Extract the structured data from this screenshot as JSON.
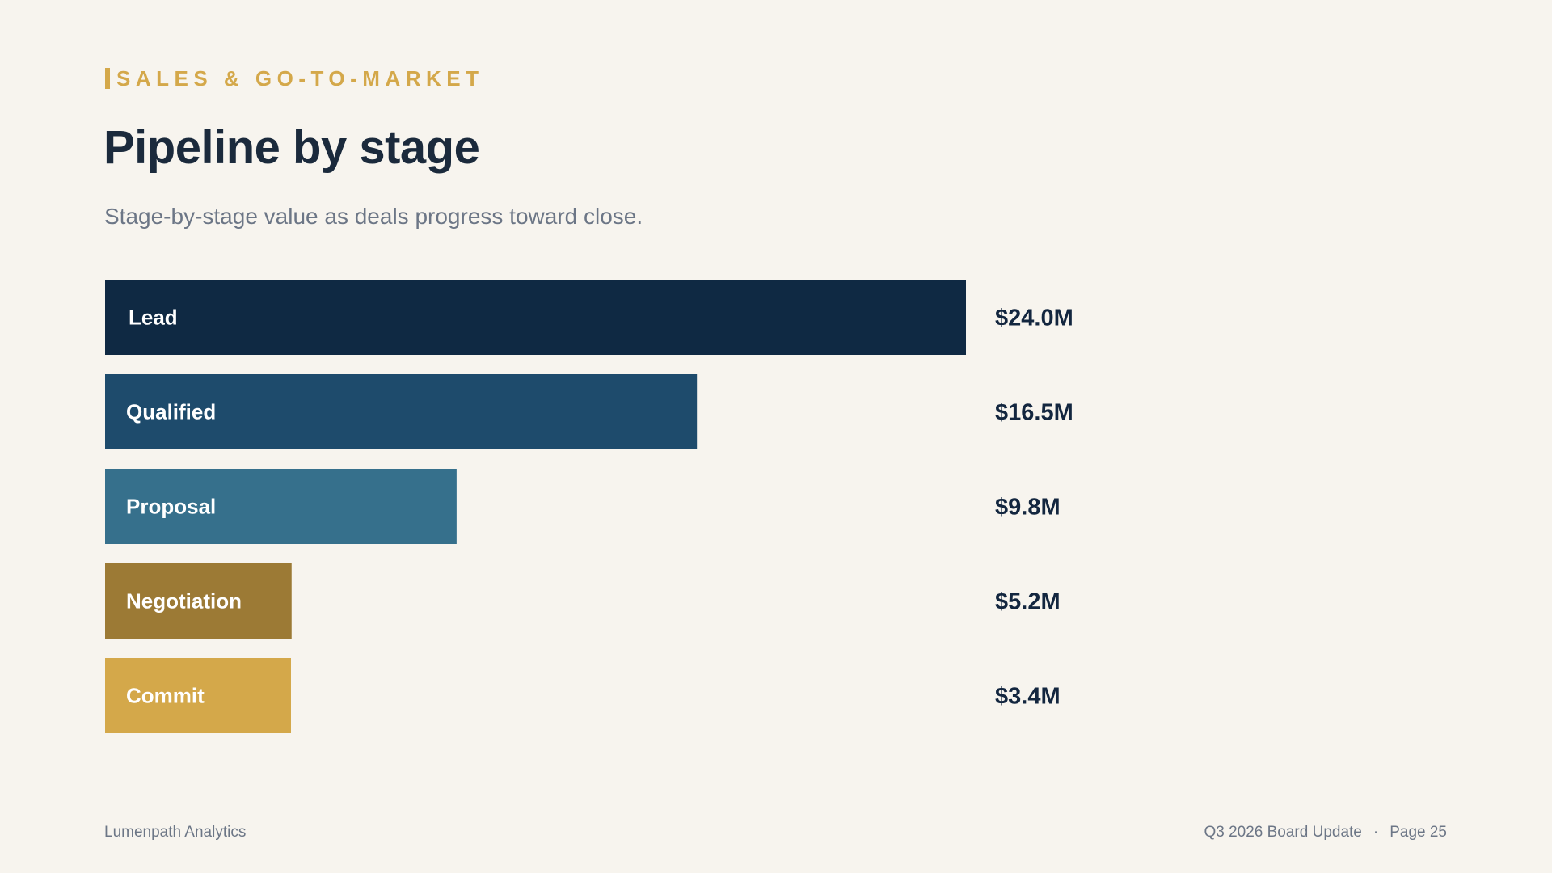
{
  "header": {
    "eyebrow": "SALES & GO-TO-MARKET",
    "title": "Pipeline by stage",
    "subtitle": "Stage-by-stage value as deals progress toward close."
  },
  "footer": {
    "company": "Lumenpath Analytics",
    "deck": "Q3 2026 Board Update",
    "separator": "·",
    "page": "Page 25"
  },
  "colors": {
    "accent": "#d4a84a",
    "text_dark": "#1b2a3c",
    "value_text": "#13263f",
    "bar_label": "#ffffff"
  },
  "chart_data": {
    "type": "bar",
    "orientation": "horizontal",
    "categories": [
      "Lead",
      "Qualified",
      "Proposal",
      "Negotiation",
      "Commit"
    ],
    "values": [
      24.0,
      16.5,
      9.8,
      5.2,
      3.4
    ],
    "value_labels": [
      "$24.0M",
      "$16.5M",
      "$9.8M",
      "$5.2M",
      "$3.4M"
    ],
    "unit": "$M",
    "bar_colors": [
      "#0f2943",
      "#1e4b6c",
      "#36708c",
      "#9c7a35",
      "#d4a84a"
    ],
    "grid": false,
    "legend": "none"
  }
}
